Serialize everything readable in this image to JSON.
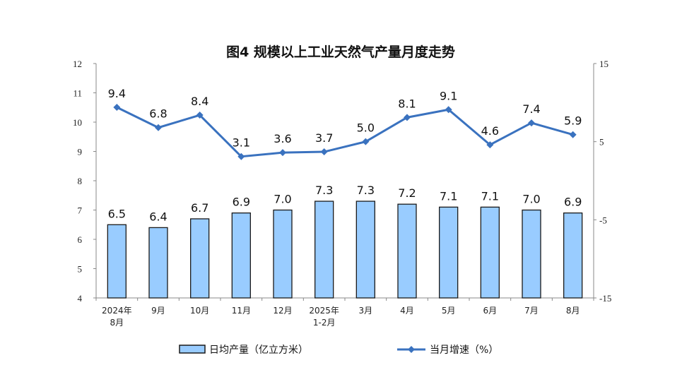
{
  "chart_data": {
    "type": "bar+line",
    "title": "图4  规模以上工业天然气产量月度走势",
    "categories": [
      [
        "2024年",
        "8月"
      ],
      [
        "9月"
      ],
      [
        "10月"
      ],
      [
        "11月"
      ],
      [
        "12月"
      ],
      [
        "2025年",
        "1-2月"
      ],
      [
        "3月"
      ],
      [
        "4月"
      ],
      [
        "5月"
      ],
      [
        "6月"
      ],
      [
        "7月"
      ],
      [
        "8月"
      ]
    ],
    "series": [
      {
        "name": "日均产量（亿立方米）",
        "type": "bar",
        "axis": "left",
        "color": "#99CCFF",
        "values": [
          6.5,
          6.4,
          6.7,
          6.9,
          7.0,
          7.3,
          7.3,
          7.2,
          7.1,
          7.1,
          7.0,
          6.9
        ],
        "labels": [
          "6.5",
          "6.4",
          "6.7",
          "6.9",
          "7.0",
          "7.3",
          "7.3",
          "7.2",
          "7.1",
          "7.1",
          "7.0",
          "6.9"
        ]
      },
      {
        "name": "当月增速（%）",
        "type": "line",
        "axis": "right",
        "color": "#3A72BF",
        "values": [
          9.4,
          6.8,
          8.4,
          3.1,
          3.6,
          3.7,
          5.0,
          8.1,
          9.1,
          4.6,
          7.4,
          5.9
        ],
        "labels": [
          "9.4",
          "6.8",
          "8.4",
          "3.1",
          "3.6",
          "3.7",
          "5.0",
          "8.1",
          "9.1",
          "4.6",
          "7.4",
          "5.9"
        ]
      }
    ],
    "y_left": {
      "range": [
        4,
        12
      ],
      "ticks": [
        "4",
        "5",
        "6",
        "7",
        "8",
        "9",
        "10",
        "11",
        "12"
      ]
    },
    "y_right": {
      "range": [
        -15,
        15
      ],
      "ticks": [
        "-15",
        "-5",
        "5",
        "15"
      ]
    },
    "legend_position": "bottom",
    "grid": false
  }
}
